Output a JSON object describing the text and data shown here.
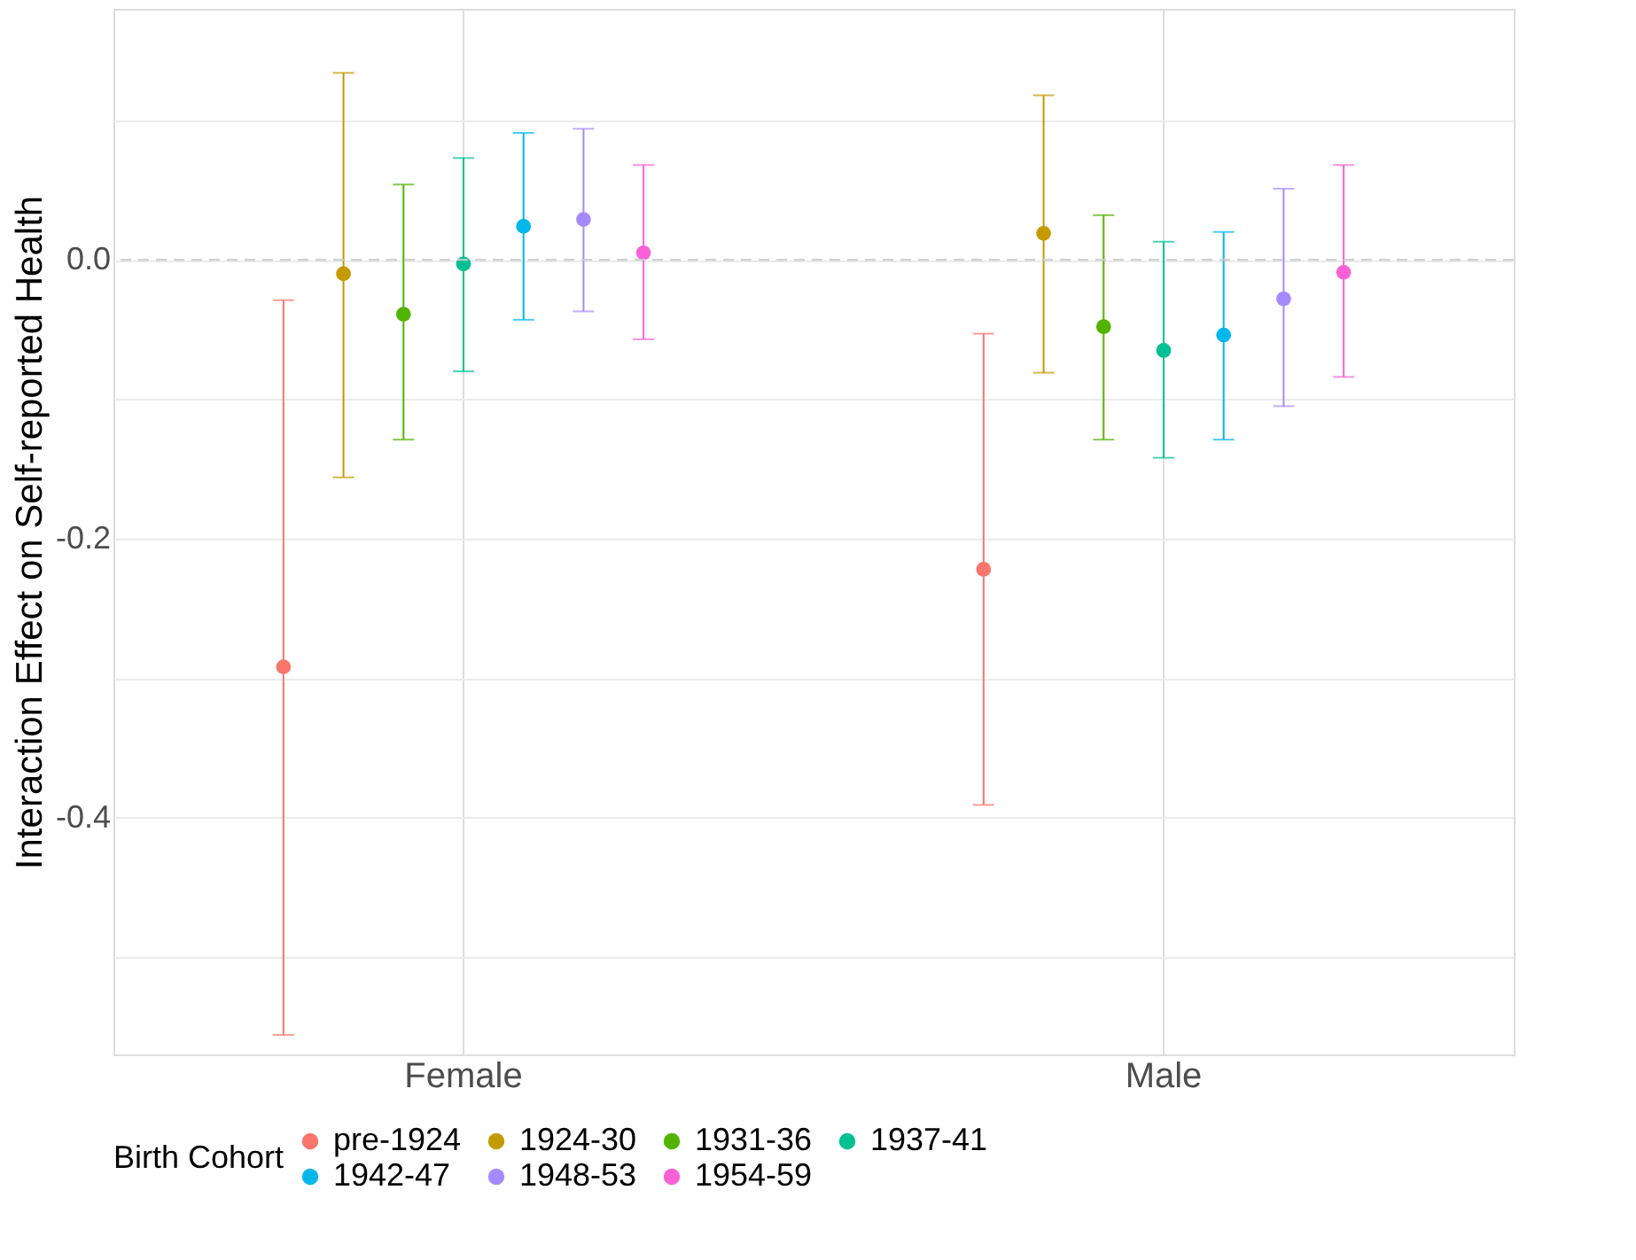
{
  "chart_data": {
    "type": "scatter",
    "ylabel": "Interaction Effect on Self-reported Health",
    "legend_title": "Birth Cohort",
    "categories": [
      "Female",
      "Male"
    ],
    "series": [
      {
        "name": "pre-1924",
        "color": "#F8766D",
        "values": [
          -0.292,
          -0.222
        ],
        "errors": [
          [
            -0.556,
            -0.029
          ],
          [
            -0.391,
            -0.053
          ]
        ]
      },
      {
        "name": "1924-30",
        "color": "#C49A00",
        "values": [
          -0.01,
          0.019
        ],
        "errors": [
          [
            -0.156,
            0.134
          ],
          [
            -0.081,
            0.118
          ]
        ]
      },
      {
        "name": "1931-36",
        "color": "#53B400",
        "values": [
          -0.039,
          -0.048
        ],
        "errors": [
          [
            -0.129,
            0.054
          ],
          [
            -0.129,
            0.032
          ]
        ]
      },
      {
        "name": "1937-41",
        "color": "#00C094",
        "values": [
          -0.003,
          -0.065
        ],
        "errors": [
          [
            -0.08,
            0.073
          ],
          [
            -0.142,
            0.013
          ]
        ]
      },
      {
        "name": "1942-47",
        "color": "#00B6EB",
        "values": [
          0.024,
          -0.054
        ],
        "errors": [
          [
            -0.043,
            0.091
          ],
          [
            -0.129,
            0.02
          ]
        ]
      },
      {
        "name": "1948-53",
        "color": "#A58AFF",
        "values": [
          0.029,
          -0.028
        ],
        "errors": [
          [
            -0.037,
            0.094
          ],
          [
            -0.105,
            0.051
          ]
        ]
      },
      {
        "name": "1954-59",
        "color": "#FB61D7",
        "values": [
          0.005,
          -0.009
        ],
        "errors": [
          [
            -0.057,
            0.068
          ],
          [
            -0.084,
            0.068
          ]
        ]
      }
    ],
    "ylim": [
      -0.57,
      0.18
    ],
    "yticks": [
      {
        "value": -0.5,
        "label": null
      },
      -0.4,
      {
        "value": -0.3,
        "label": null
      },
      -0.2,
      {
        "value": -0.1,
        "label": null
      },
      {
        "value": 0.0,
        "label": "0.0"
      },
      {
        "value": 0.1,
        "label": null
      }
    ],
    "ref_lines": [
      {
        "axis": "y",
        "value": 0.0,
        "color": "#cccccc",
        "line_style": "dashed"
      }
    ],
    "grid": true,
    "legend": "bottom",
    "marker": "circle"
  }
}
